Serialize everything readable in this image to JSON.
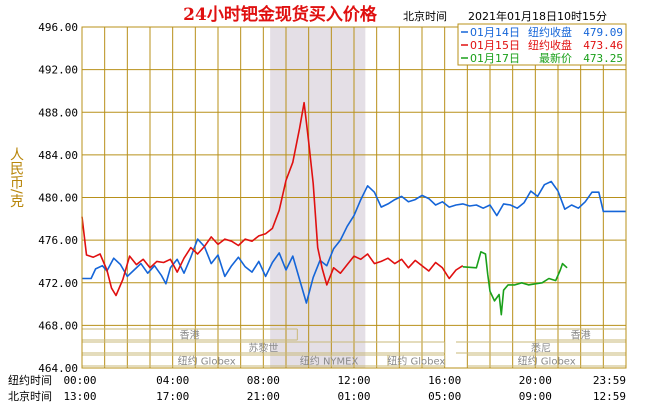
{
  "chart_data": {
    "type": "line",
    "title": "24小时钯金现货买入价格",
    "timezone_label": "北京时间",
    "timestamp": "2021年01月18日10时15分",
    "ylabel": "人民币/克",
    "ylim": [
      464,
      496
    ],
    "yticks": [
      "496.00",
      "492.00",
      "488.00",
      "484.00",
      "480.00",
      "476.00",
      "472.00",
      "468.00",
      "464.00"
    ],
    "yticks_values": [
      496,
      492,
      488,
      484,
      480,
      476,
      472,
      468,
      464
    ],
    "xlim": [
      0,
      24
    ],
    "xrow1_label": "纽约时间",
    "xrow2_label": "北京时间",
    "xticks_ny": [
      "00:00",
      "04:00",
      "08:00",
      "12:00",
      "16:00",
      "20:00",
      "23:59"
    ],
    "xticks_bj": [
      "13:00",
      "17:00",
      "21:00",
      "01:00",
      "05:00",
      "09:00",
      "12:59"
    ],
    "xticks_pos": [
      0,
      4,
      8,
      12,
      16,
      20,
      24
    ],
    "shaded_region": [
      8.3,
      12.5
    ],
    "grid": true,
    "legend_placement": "top-right",
    "legend": [
      {
        "date": "01月14日",
        "label": "纽约收盘",
        "value": "479.09",
        "color": "#1565d8"
      },
      {
        "date": "01月15日",
        "label": "纽约收盘",
        "value": "473.46",
        "color": "#e01010"
      },
      {
        "date": "01月17日",
        "label": "最新价",
        "value": "473.25",
        "color": "#1aa01a"
      }
    ],
    "sessions": [
      {
        "label": "香港",
        "start": 0,
        "end": 9.5,
        "row": 0
      },
      {
        "label": "苏黎世",
        "start": 0,
        "end": 16,
        "row": 1
      },
      {
        "label": "纽约 Globex",
        "start": 0,
        "end": 11,
        "row": 2
      },
      {
        "label": "纽约 NYMEX",
        "start": 8.3,
        "end": 13.5,
        "row": 2
      },
      {
        "label": "纽约 Globex",
        "start": 13.5,
        "end": 16,
        "row": 2
      },
      {
        "label": "香港",
        "start": 20,
        "end": 24,
        "row": 0
      },
      {
        "label": "悉尼",
        "start": 16.5,
        "end": 24,
        "row": 1
      },
      {
        "label": "纽约 Globex",
        "start": 17,
        "end": 24,
        "row": 2
      }
    ],
    "series": [
      {
        "name": "01月14日",
        "color": "#1565d8",
        "points": [
          [
            0.0,
            472.4
          ],
          [
            0.4,
            472.4
          ],
          [
            0.6,
            473.3
          ],
          [
            0.9,
            473.6
          ],
          [
            1.1,
            473.1
          ],
          [
            1.4,
            474.3
          ],
          [
            1.7,
            473.7
          ],
          [
            2.0,
            472.6
          ],
          [
            2.3,
            473.2
          ],
          [
            2.6,
            473.8
          ],
          [
            2.9,
            472.9
          ],
          [
            3.2,
            473.6
          ],
          [
            3.5,
            472.7
          ],
          [
            3.7,
            471.9
          ],
          [
            3.9,
            473.4
          ],
          [
            4.2,
            474.2
          ],
          [
            4.5,
            472.9
          ],
          [
            4.8,
            474.4
          ],
          [
            5.1,
            476.1
          ],
          [
            5.4,
            475.4
          ],
          [
            5.7,
            473.8
          ],
          [
            6.0,
            474.6
          ],
          [
            6.3,
            472.6
          ],
          [
            6.6,
            473.6
          ],
          [
            6.9,
            474.4
          ],
          [
            7.2,
            473.5
          ],
          [
            7.5,
            473.0
          ],
          [
            7.8,
            474.0
          ],
          [
            8.1,
            472.6
          ],
          [
            8.4,
            473.9
          ],
          [
            8.7,
            474.8
          ],
          [
            9.0,
            473.2
          ],
          [
            9.3,
            474.5
          ],
          [
            9.6,
            472.3
          ],
          [
            9.9,
            470.1
          ],
          [
            10.2,
            472.5
          ],
          [
            10.5,
            474.1
          ],
          [
            10.8,
            473.6
          ],
          [
            11.1,
            475.2
          ],
          [
            11.4,
            476.0
          ],
          [
            11.7,
            477.3
          ],
          [
            12.0,
            478.3
          ],
          [
            12.3,
            479.8
          ],
          [
            12.6,
            481.1
          ],
          [
            12.9,
            480.5
          ],
          [
            13.2,
            479.1
          ],
          [
            13.5,
            479.4
          ],
          [
            13.8,
            479.8
          ],
          [
            14.1,
            480.1
          ],
          [
            14.4,
            479.6
          ],
          [
            14.7,
            479.8
          ],
          [
            15.0,
            480.2
          ],
          [
            15.3,
            479.9
          ],
          [
            15.6,
            479.3
          ],
          [
            15.9,
            479.6
          ],
          [
            16.2,
            479.1
          ],
          [
            16.5,
            479.3
          ],
          [
            16.8,
            479.4
          ],
          [
            17.1,
            479.2
          ],
          [
            17.4,
            479.3
          ],
          [
            17.7,
            479.0
          ],
          [
            18.0,
            479.3
          ],
          [
            18.3,
            478.3
          ],
          [
            18.6,
            479.4
          ],
          [
            18.9,
            479.3
          ],
          [
            19.2,
            479.0
          ],
          [
            19.5,
            479.5
          ],
          [
            19.8,
            480.6
          ],
          [
            20.1,
            480.1
          ],
          [
            20.4,
            481.2
          ],
          [
            20.7,
            481.5
          ],
          [
            21.0,
            480.6
          ],
          [
            21.3,
            478.9
          ],
          [
            21.6,
            479.3
          ],
          [
            21.9,
            479.0
          ],
          [
            22.2,
            479.6
          ],
          [
            22.5,
            480.5
          ],
          [
            22.8,
            480.5
          ],
          [
            23.0,
            478.7
          ],
          [
            23.4,
            478.7
          ],
          [
            23.99,
            478.7
          ]
        ]
      },
      {
        "name": "01月15日",
        "color": "#e01010",
        "points": [
          [
            0.0,
            478.2
          ],
          [
            0.2,
            474.6
          ],
          [
            0.5,
            474.4
          ],
          [
            0.8,
            474.7
          ],
          [
            1.1,
            473.2
          ],
          [
            1.3,
            471.5
          ],
          [
            1.5,
            470.8
          ],
          [
            1.8,
            472.3
          ],
          [
            2.1,
            474.5
          ],
          [
            2.4,
            473.7
          ],
          [
            2.7,
            474.2
          ],
          [
            3.0,
            473.4
          ],
          [
            3.3,
            474.0
          ],
          [
            3.6,
            473.9
          ],
          [
            3.9,
            474.2
          ],
          [
            4.2,
            473.0
          ],
          [
            4.5,
            474.3
          ],
          [
            4.8,
            475.3
          ],
          [
            5.1,
            474.7
          ],
          [
            5.4,
            475.4
          ],
          [
            5.7,
            476.3
          ],
          [
            6.0,
            475.6
          ],
          [
            6.3,
            476.1
          ],
          [
            6.6,
            475.9
          ],
          [
            6.9,
            475.5
          ],
          [
            7.2,
            476.1
          ],
          [
            7.5,
            475.9
          ],
          [
            7.8,
            476.4
          ],
          [
            8.1,
            476.6
          ],
          [
            8.4,
            477.1
          ],
          [
            8.7,
            478.8
          ],
          [
            9.0,
            481.6
          ],
          [
            9.3,
            483.3
          ],
          [
            9.6,
            486.5
          ],
          [
            9.8,
            488.9
          ],
          [
            10.0,
            485.2
          ],
          [
            10.2,
            481.3
          ],
          [
            10.4,
            475.3
          ],
          [
            10.6,
            473.3
          ],
          [
            10.8,
            471.8
          ],
          [
            11.1,
            473.4
          ],
          [
            11.4,
            472.9
          ],
          [
            11.7,
            473.7
          ],
          [
            12.0,
            474.5
          ],
          [
            12.3,
            474.2
          ],
          [
            12.6,
            474.7
          ],
          [
            12.9,
            473.8
          ],
          [
            13.2,
            474.0
          ],
          [
            13.5,
            474.3
          ],
          [
            13.8,
            473.8
          ],
          [
            14.1,
            474.2
          ],
          [
            14.4,
            473.4
          ],
          [
            14.7,
            474.1
          ],
          [
            15.0,
            473.6
          ],
          [
            15.3,
            473.1
          ],
          [
            15.6,
            473.9
          ],
          [
            15.9,
            473.4
          ],
          [
            16.2,
            472.4
          ],
          [
            16.5,
            473.2
          ],
          [
            16.8,
            473.6
          ]
        ]
      },
      {
        "name": "01月17日",
        "color": "#1aa01a",
        "points": [
          [
            16.8,
            473.5
          ],
          [
            17.4,
            473.4
          ],
          [
            17.6,
            474.9
          ],
          [
            17.8,
            474.7
          ],
          [
            17.9,
            472.8
          ],
          [
            18.0,
            471.2
          ],
          [
            18.2,
            470.3
          ],
          [
            18.4,
            470.9
          ],
          [
            18.5,
            469.0
          ],
          [
            18.6,
            471.3
          ],
          [
            18.8,
            471.8
          ],
          [
            19.1,
            471.8
          ],
          [
            19.4,
            472.0
          ],
          [
            19.7,
            471.8
          ],
          [
            20.0,
            471.9
          ],
          [
            20.3,
            472.0
          ],
          [
            20.6,
            472.4
          ],
          [
            20.9,
            472.2
          ],
          [
            21.1,
            473.2
          ],
          [
            21.2,
            473.8
          ],
          [
            21.4,
            473.4
          ]
        ]
      }
    ]
  }
}
